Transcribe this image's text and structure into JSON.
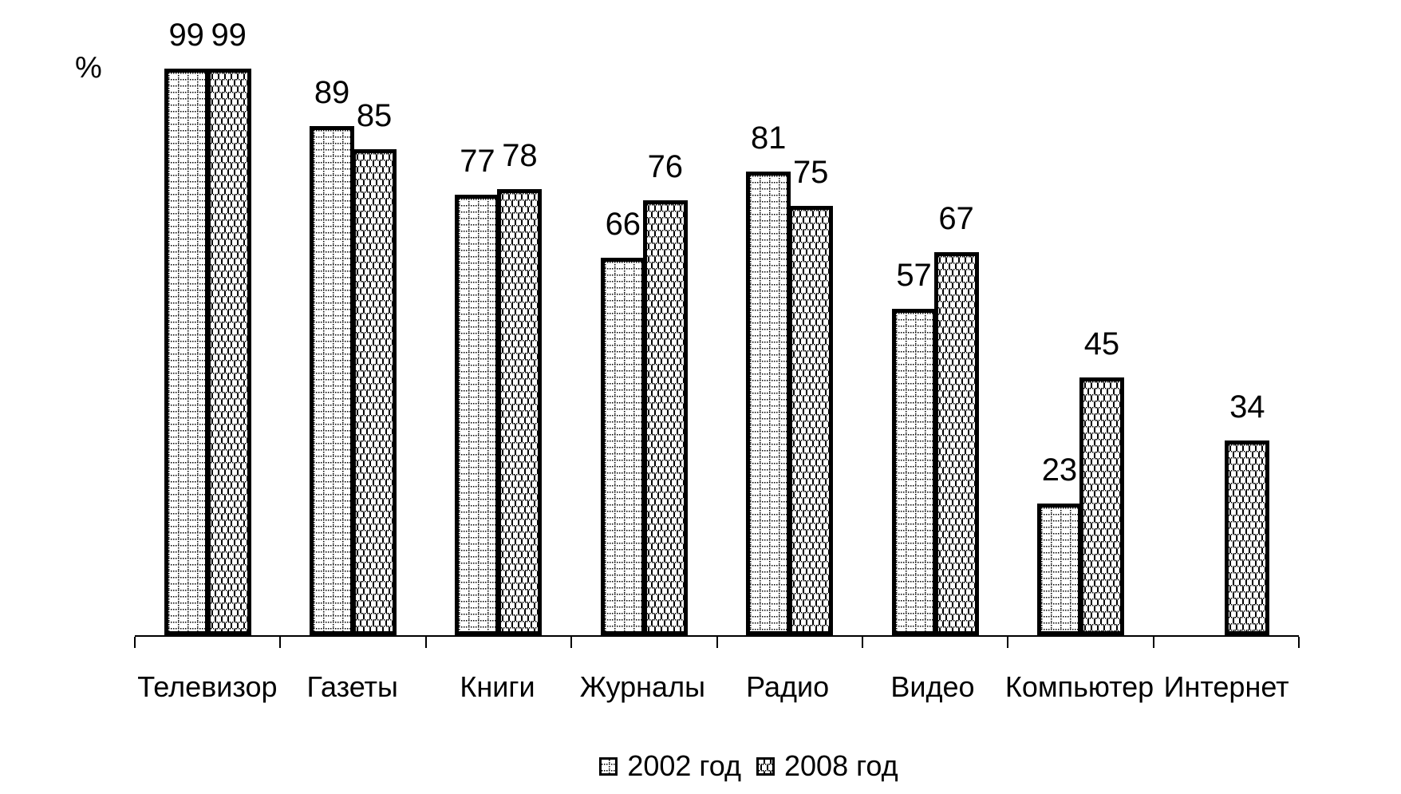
{
  "chart_data": {
    "type": "bar",
    "categories": [
      "Телевизор",
      "Газеты",
      "Книги",
      "Журналы",
      "Радио",
      "Видео",
      "Компьютер",
      "Интернет"
    ],
    "series": [
      {
        "name": "2002 год",
        "pattern": "grid-hatch",
        "values": [
          99,
          89,
          77,
          66,
          81,
          57,
          23,
          null
        ]
      },
      {
        "name": "2008 год",
        "pattern": "brick-hatch",
        "values": [
          99,
          85,
          78,
          76,
          75,
          67,
          45,
          34
        ]
      }
    ],
    "ylabel": "%",
    "ylim": [
      0,
      100
    ],
    "value_labels": true,
    "grid": false,
    "legend_position": "bottom",
    "colors": {
      "foreground": "#000000",
      "background": "#ffffff"
    }
  }
}
